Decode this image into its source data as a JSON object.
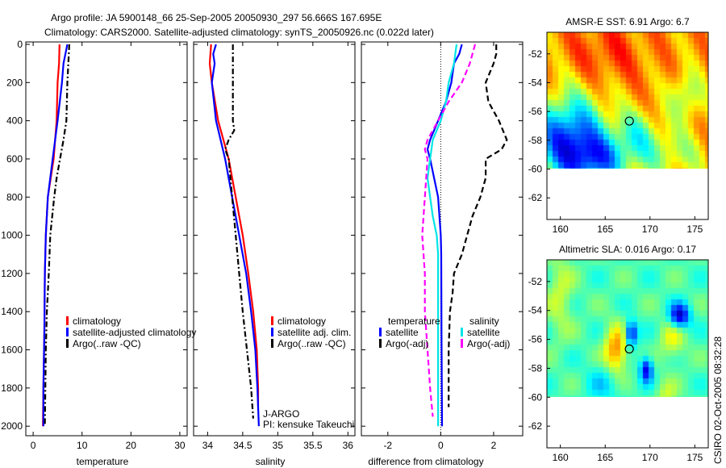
{
  "title_line1": "Argo profile: JA 5900148_66 25-Sep-2005 20050930_297 56.666S 167.695E",
  "title_line2": "Climatology: CARS2000. Satellite-adjusted climatology: synTS_20050926.nc (0.022d later)",
  "side_stamp": "CSIRO 02-Oct-2005 08:32:28",
  "pi_text": [
    "J-ARGO",
    "PI: kensuke Takeuchi"
  ],
  "colors": {
    "climatology": "#ff0000",
    "satellite": "#0000ff",
    "argo": "#000000",
    "sal_satellite": "#00e5e5",
    "sal_argo": "#ff00ff"
  },
  "chart_data": [
    {
      "type": "line",
      "xlabel": "temperature",
      "ylabel": "",
      "xlim": [
        -1.5,
        31.5
      ],
      "ylim": [
        2050,
        0
      ],
      "xticks": [
        0,
        10,
        20,
        30
      ],
      "yticks": [
        0,
        200,
        400,
        600,
        800,
        1000,
        1200,
        1400,
        1600,
        1800,
        2000
      ],
      "legend": [
        "climatology",
        "satellite-adjusted climatology",
        "Argo(..raw -QC)"
      ],
      "legend_placement": "lower-right",
      "series": [
        {
          "name": "climatology",
          "depth": [
            0,
            100,
            200,
            400,
            600,
            700,
            800,
            1000,
            1200,
            1500,
            1800,
            2000
          ],
          "values": [
            5.4,
            5.3,
            5.0,
            4.8,
            4.2,
            3.6,
            3.0,
            2.6,
            2.4,
            2.3,
            2.1,
            2.0
          ]
        },
        {
          "name": "satellite-adjusted climatology",
          "depth": [
            0,
            50,
            100,
            200,
            400,
            600,
            700,
            800,
            1000,
            1200,
            1500,
            1800,
            2000
          ],
          "values": [
            7.0,
            6.6,
            6.2,
            5.9,
            5.0,
            4.0,
            3.5,
            3.0,
            2.6,
            2.4,
            2.3,
            2.1,
            2.1
          ]
        },
        {
          "name": "Argo(..raw -QC)",
          "depth": [
            0,
            100,
            200,
            400,
            500,
            600,
            700,
            800,
            1000,
            1200,
            1400,
            1600,
            1800,
            2000
          ],
          "values": [
            7.4,
            7.2,
            7.0,
            6.8,
            6.2,
            5.5,
            4.8,
            4.3,
            3.5,
            3.2,
            2.8,
            2.6,
            2.5,
            2.4
          ]
        }
      ]
    },
    {
      "type": "line",
      "xlabel": "salinity",
      "xlim": [
        33.8,
        36.1
      ],
      "ylim": [
        2050,
        0
      ],
      "xticks": [
        34,
        34.5,
        35,
        35.5,
        36
      ],
      "legend": [
        "climatology",
        "satellite adj. clim.",
        "Argo(..raw -QC)"
      ],
      "legend_placement": "lower-right",
      "series": [
        {
          "name": "climatology",
          "depth": [
            0,
            100,
            200,
            400,
            600,
            800,
            1000,
            1200,
            1400,
            1600,
            1800,
            1900
          ],
          "values": [
            34.05,
            34.03,
            34.06,
            34.15,
            34.3,
            34.4,
            34.5,
            34.58,
            34.65,
            34.7,
            34.72,
            34.72
          ]
        },
        {
          "name": "satellite adj. clim.",
          "depth": [
            0,
            50,
            100,
            200,
            400,
            600,
            800,
            1000,
            1200,
            1400,
            1600,
            1800,
            2000
          ],
          "values": [
            34.12,
            34.08,
            34.1,
            34.06,
            34.12,
            34.25,
            34.35,
            34.45,
            34.55,
            34.62,
            34.68,
            34.71,
            34.73
          ]
        },
        {
          "name": "Argo(..raw -QC)",
          "depth": [
            0,
            200,
            400,
            450,
            500,
            550,
            600,
            800,
            1000,
            1200,
            1400,
            1600,
            1800,
            1960
          ],
          "values": [
            34.36,
            34.36,
            34.36,
            34.38,
            34.3,
            34.25,
            34.3,
            34.35,
            34.4,
            34.45,
            34.5,
            34.56,
            34.62,
            34.65
          ]
        }
      ]
    },
    {
      "type": "line",
      "xlabel": "difference from climatology",
      "xlim": [
        -3,
        3.1
      ],
      "ylim": [
        2050,
        0
      ],
      "xticks": [
        -2,
        0,
        2
      ],
      "legend": [
        "temperature",
        "satellite",
        "Argo(-adj)",
        "salinity",
        "satellite",
        "Argo(-adj)"
      ],
      "legend_placement": "lower-center",
      "series": [
        {
          "name": "temperature satellite",
          "depth": [
            0,
            50,
            100,
            200,
            300,
            400,
            500,
            550,
            600,
            800,
            1000,
            1100,
            1500,
            2000
          ],
          "values": [
            0.8,
            0.7,
            0.5,
            0.4,
            0.2,
            -0.1,
            -0.4,
            -0.5,
            -0.4,
            -0.1,
            0.0,
            0.02,
            0.03,
            0.05
          ]
        },
        {
          "name": "temperature Argo(-adj)",
          "depth": [
            0,
            50,
            100,
            200,
            300,
            400,
            500,
            550,
            600,
            700,
            800,
            900,
            1000,
            1100,
            1200,
            1300,
            1400,
            1600,
            1800,
            1900
          ],
          "values": [
            2.1,
            2.1,
            2.0,
            1.7,
            1.8,
            2.2,
            2.5,
            2.3,
            1.7,
            1.7,
            1.5,
            1.2,
            1.0,
            0.8,
            0.5,
            0.45,
            0.35,
            0.3,
            0.3,
            0.3
          ]
        },
        {
          "name": "salinity satellite",
          "depth": [
            0,
            100,
            200,
            300,
            400,
            500,
            600,
            700,
            800,
            900,
            1000,
            1100,
            1500,
            2000
          ],
          "values": [
            0.6,
            0.5,
            0.3,
            0.2,
            0.0,
            -0.3,
            -0.4,
            -0.5,
            -0.4,
            -0.3,
            -0.15,
            -0.1,
            -0.1,
            -0.1
          ]
        },
        {
          "name": "salinity Argo(-adj)",
          "depth": [
            0,
            50,
            100,
            200,
            300,
            400,
            500,
            550,
            600,
            800,
            1000,
            1200,
            1400,
            1600,
            1800,
            1950
          ],
          "values": [
            1.3,
            1.2,
            1.1,
            0.8,
            0.3,
            -0.1,
            -0.5,
            -0.6,
            -0.5,
            -0.6,
            -0.7,
            -0.6,
            -0.6,
            -0.5,
            -0.4,
            -0.3
          ]
        }
      ]
    },
    {
      "type": "heatmap",
      "title": "AMSR-E SST: 6.91 Argo: 6.7",
      "xlim": [
        158.5,
        176.5
      ],
      "ylim": [
        -63.5,
        -50.5
      ],
      "xticks": [
        160,
        165,
        170,
        175
      ],
      "yticks": [
        -52,
        -54,
        -56,
        -58,
        -60,
        -62
      ],
      "data_extent_lat": [
        -60,
        -50.5
      ],
      "marker": {
        "lon": 167.695,
        "lat": -56.666
      }
    },
    {
      "type": "heatmap",
      "title": "Altimetric SLA: 0.016 Argo: 0.17",
      "xlim": [
        158.5,
        176.5
      ],
      "ylim": [
        -63.5,
        -50.5
      ],
      "xticks": [
        160,
        165,
        170,
        175
      ],
      "yticks": [
        -52,
        -54,
        -56,
        -58,
        -60,
        -62
      ],
      "data_extent_lat": [
        -60,
        -50.5
      ],
      "marker": {
        "lon": 167.695,
        "lat": -56.666
      }
    }
  ]
}
